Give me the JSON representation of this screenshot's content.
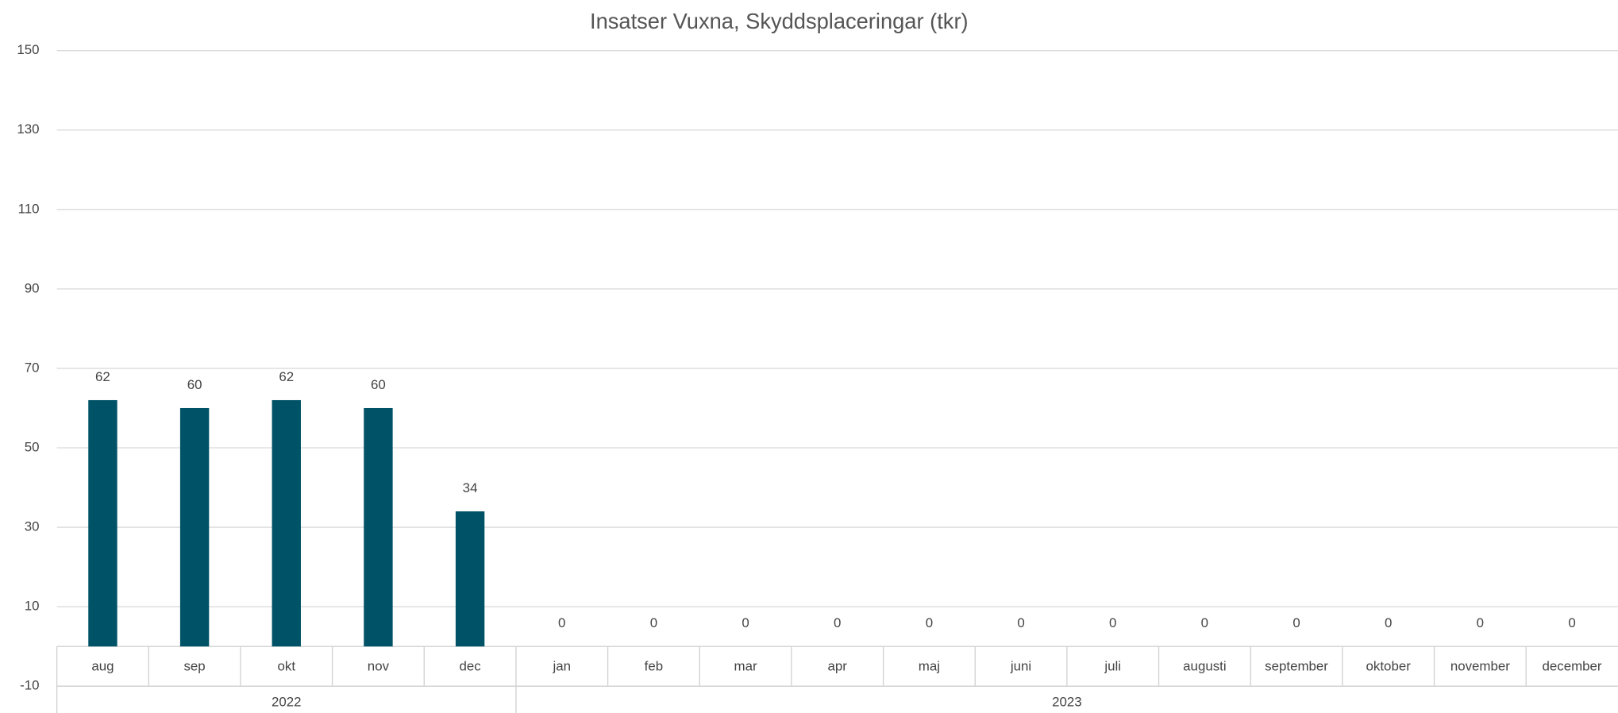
{
  "chart_data": {
    "type": "bar",
    "title": "Insatser Vuxna, Skyddsplaceringar (tkr)",
    "groups": [
      {
        "name": "2022",
        "categories": [
          "aug",
          "sep",
          "okt",
          "nov",
          "dec"
        ]
      },
      {
        "name": "2023",
        "categories": [
          "jan",
          "feb",
          "mar",
          "apr",
          "maj",
          "juni",
          "juli",
          "augusti",
          "september",
          "oktober",
          "november",
          "december"
        ]
      }
    ],
    "series": [
      {
        "color": "#005266",
        "values": [
          62,
          60,
          62,
          60,
          34,
          0,
          0,
          0,
          0,
          0,
          0,
          0,
          0,
          0,
          0,
          0,
          0
        ]
      }
    ],
    "ylim": [
      -10,
      150
    ],
    "yticks": [
      -10,
      10,
      30,
      50,
      70,
      90,
      110,
      130,
      150
    ],
    "grid": true
  }
}
